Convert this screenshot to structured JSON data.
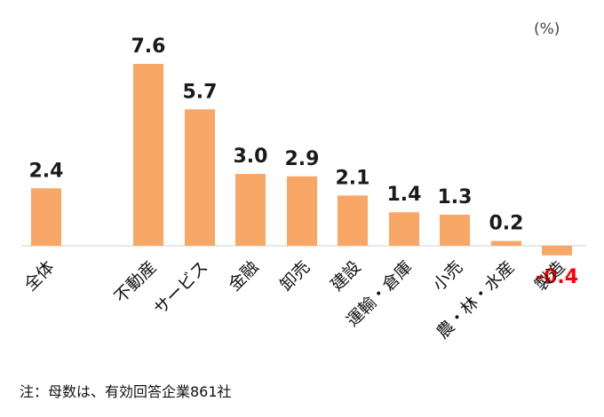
{
  "chart_data": {
    "type": "bar",
    "unit_label": "(%)",
    "categories": [
      "全体",
      "不動産",
      "サービス",
      "金融",
      "卸売",
      "建設",
      "運輸・倉庫",
      "小売",
      "農・林・水産",
      "製造"
    ],
    "values": [
      2.4,
      7.6,
      5.7,
      3.0,
      2.9,
      2.1,
      1.4,
      1.3,
      0.2,
      -0.4
    ],
    "value_labels": [
      "2.4",
      "7.6",
      "5.7",
      "3.0",
      "2.9",
      "2.1",
      "1.4",
      "1.3",
      "0.2",
      "-0.4"
    ],
    "colors": {
      "bar": "#F9A766",
      "label": "#1a1a1a",
      "negative_label": "#FF0000",
      "axis": "#d0d0d0"
    },
    "ylim": [
      -0.4,
      7.6
    ],
    "grid": false,
    "legend": "none"
  },
  "note": "注：母数は、有効回答企業861社"
}
